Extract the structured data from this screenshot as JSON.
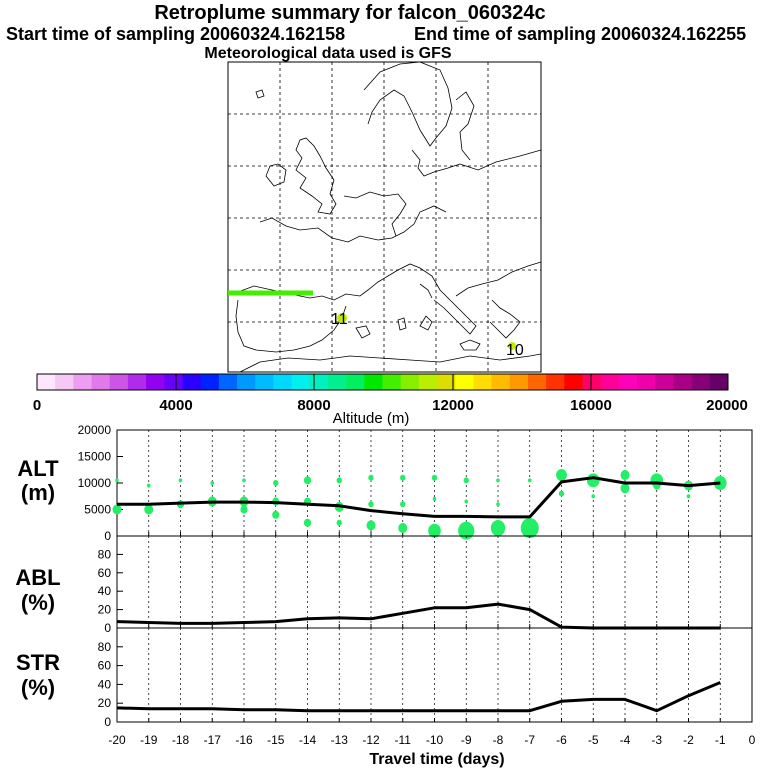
{
  "header": {
    "title": "Retroplume summary for falcon_060324c",
    "start_label": "Start time of sampling 20060324.162158",
    "end_label": "End time of sampling 20060324.162255",
    "met_label": "Meteorological data used is GFS"
  },
  "map": {
    "labels": [
      "11",
      "10"
    ]
  },
  "colorbar": {
    "title": "Altitude (m)",
    "ticks": [
      "0",
      "4000",
      "8000",
      "12000",
      "16000",
      "20000"
    ],
    "colors": [
      "#ffe6ff",
      "#f5c8f5",
      "#ee9ef0",
      "#e07ae8",
      "#cc55e6",
      "#b02bea",
      "#9400f0",
      "#6a00f5",
      "#2a00ff",
      "#0022ff",
      "#0066ff",
      "#0099ff",
      "#00bbff",
      "#00d8ff",
      "#00f0f0",
      "#00f0c0",
      "#00f090",
      "#00f060",
      "#00e800",
      "#44ee00",
      "#88ee00",
      "#bbee00",
      "#dddd00",
      "#ffff00",
      "#ffdd00",
      "#ffbb00",
      "#ff9900",
      "#ff6600",
      "#ff3300",
      "#ff0000",
      "#ff0066",
      "#ff0099",
      "#ff00bb",
      "#ee00aa",
      "#cc0099",
      "#aa0088",
      "#880077",
      "#660066"
    ]
  },
  "chart_data": [
    {
      "type": "line",
      "name": "alt",
      "label_line1": "ALT",
      "label_line2": "(m)",
      "xlim": [
        -20,
        0
      ],
      "ylim": [
        0,
        20000
      ],
      "yticks": [
        "0",
        "5000",
        "10000",
        "15000",
        "20000"
      ],
      "x": [
        -20,
        -19,
        -18,
        -17,
        -16,
        -15,
        -14,
        -13,
        -12,
        -11,
        -10,
        -9,
        -8,
        -7,
        -6,
        -5,
        -4,
        -3,
        -2,
        -1
      ],
      "values": [
        6000,
        6000,
        6200,
        6400,
        6400,
        6300,
        6000,
        5700,
        4800,
        4200,
        3700,
        3700,
        3600,
        3600,
        10200,
        11000,
        10000,
        10000,
        9500,
        10000
      ],
      "scatter": [
        {
          "x": -20,
          "y": 5000,
          "s": 5
        },
        {
          "x": -20,
          "y": 10500,
          "s": 2
        },
        {
          "x": -19,
          "y": 5000,
          "s": 5
        },
        {
          "x": -19,
          "y": 9500,
          "s": 2
        },
        {
          "x": -18,
          "y": 6000,
          "s": 4
        },
        {
          "x": -18,
          "y": 10500,
          "s": 2
        },
        {
          "x": -17,
          "y": 6500,
          "s": 5
        },
        {
          "x": -17,
          "y": 10000,
          "s": 2
        },
        {
          "x": -16,
          "y": 6500,
          "s": 5
        },
        {
          "x": -16,
          "y": 5000,
          "s": 4
        },
        {
          "x": -16,
          "y": 10500,
          "s": 2
        },
        {
          "x": -15,
          "y": 4000,
          "s": 4
        },
        {
          "x": -15,
          "y": 6500,
          "s": 4
        },
        {
          "x": -15,
          "y": 10000,
          "s": 3
        },
        {
          "x": -14,
          "y": 2500,
          "s": 4
        },
        {
          "x": -14,
          "y": 6500,
          "s": 4
        },
        {
          "x": -14,
          "y": 10500,
          "s": 4
        },
        {
          "x": -13,
          "y": 2500,
          "s": 3
        },
        {
          "x": -13,
          "y": 5500,
          "s": 5
        },
        {
          "x": -13,
          "y": 10500,
          "s": 3
        },
        {
          "x": -12,
          "y": 2000,
          "s": 5
        },
        {
          "x": -12,
          "y": 6000,
          "s": 3
        },
        {
          "x": -12,
          "y": 11000,
          "s": 3
        },
        {
          "x": -11,
          "y": 1500,
          "s": 5
        },
        {
          "x": -11,
          "y": 6000,
          "s": 3
        },
        {
          "x": -11,
          "y": 11000,
          "s": 3
        },
        {
          "x": -10,
          "y": 1000,
          "s": 7
        },
        {
          "x": -10,
          "y": 7000,
          "s": 2
        },
        {
          "x": -10,
          "y": 11000,
          "s": 3
        },
        {
          "x": -9,
          "y": 1000,
          "s": 9
        },
        {
          "x": -9,
          "y": 6500,
          "s": 2
        },
        {
          "x": -9,
          "y": 10500,
          "s": 3
        },
        {
          "x": -8,
          "y": 1500,
          "s": 8
        },
        {
          "x": -8,
          "y": 6000,
          "s": 2
        },
        {
          "x": -8,
          "y": 10500,
          "s": 2
        },
        {
          "x": -7,
          "y": 1500,
          "s": 10
        },
        {
          "x": -7,
          "y": 10500,
          "s": 2
        },
        {
          "x": -6,
          "y": 11500,
          "s": 6
        },
        {
          "x": -6,
          "y": 8000,
          "s": 3
        },
        {
          "x": -5,
          "y": 10500,
          "s": 7
        },
        {
          "x": -5,
          "y": 7500,
          "s": 2
        },
        {
          "x": -4,
          "y": 11500,
          "s": 5
        },
        {
          "x": -4,
          "y": 9000,
          "s": 5
        },
        {
          "x": -3,
          "y": 10500,
          "s": 7
        },
        {
          "x": -3,
          "y": 9500,
          "s": 4
        },
        {
          "x": -2,
          "y": 9500,
          "s": 5
        },
        {
          "x": -2,
          "y": 7500,
          "s": 2
        },
        {
          "x": -1,
          "y": 10000,
          "s": 7
        }
      ]
    },
    {
      "type": "line",
      "name": "abl",
      "label_line1": "ABL",
      "label_line2": "(%)",
      "xlim": [
        -20,
        0
      ],
      "ylim": [
        0,
        100
      ],
      "yticks": [
        "0",
        "20",
        "40",
        "60",
        "80"
      ],
      "x": [
        -20,
        -19,
        -18,
        -17,
        -16,
        -15,
        -14,
        -13,
        -12,
        -11,
        -10,
        -9,
        -8,
        -7,
        -6,
        -5,
        -4,
        -3,
        -2,
        -1
      ],
      "values": [
        7,
        6,
        5,
        5,
        6,
        7,
        10,
        11,
        10,
        16,
        22,
        22,
        26,
        20,
        1,
        0,
        0,
        0,
        0,
        0
      ]
    },
    {
      "type": "line",
      "name": "str",
      "label_line1": "STR",
      "label_line2": "(%)",
      "xlim": [
        -20,
        0
      ],
      "ylim": [
        0,
        100
      ],
      "yticks": [
        "0",
        "20",
        "40",
        "60",
        "80"
      ],
      "x": [
        -20,
        -19,
        -18,
        -17,
        -16,
        -15,
        -14,
        -13,
        -12,
        -11,
        -10,
        -9,
        -8,
        -7,
        -6,
        -5,
        -4,
        -3,
        -2,
        -1
      ],
      "values": [
        15,
        14,
        14,
        14,
        13,
        13,
        12,
        12,
        12,
        12,
        12,
        12,
        12,
        12,
        22,
        24,
        24,
        12,
        28,
        42
      ],
      "xlabel": "Travel time (days)",
      "xticks": [
        "-20",
        "-19",
        "-18",
        "-17",
        "-16",
        "-15",
        "-14",
        "-13",
        "-12",
        "-11",
        "-10",
        "-9",
        "-8",
        "-7",
        "-6",
        "-5",
        "-4",
        "-3",
        "-2",
        "-1",
        "0"
      ]
    }
  ]
}
